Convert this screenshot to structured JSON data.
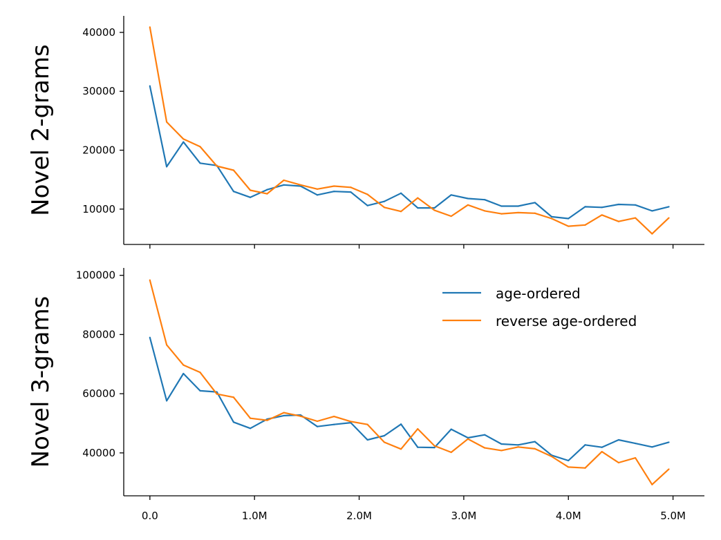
{
  "chart_data": {
    "type": "line",
    "x": [
      0,
      160000,
      320000,
      480000,
      640000,
      800000,
      960000,
      1120000,
      1280000,
      1440000,
      1600000,
      1760000,
      1920000,
      2080000,
      2240000,
      2400000,
      2560000,
      2720000,
      2880000,
      3040000,
      3200000,
      3360000,
      3520000,
      3680000,
      3840000,
      4000000,
      4160000,
      4320000,
      4480000,
      4640000,
      4800000,
      4960000
    ],
    "xlim": [
      -250000,
      5300000
    ],
    "xticks": [
      0,
      1000000,
      2000000,
      3000000,
      4000000,
      5000000
    ],
    "xtick_labels": [
      "0.0",
      "1.0M",
      "2.0M",
      "3.0M",
      "4.0M",
      "5.0M"
    ],
    "legend": {
      "placement": "top-right",
      "entries": [
        "age-ordered",
        "reverse age-ordered"
      ]
    },
    "colors": {
      "age-ordered": "#1f77b4",
      "reverse age-ordered": "#ff7f0e"
    },
    "grid": false,
    "panels": [
      {
        "ylabel": "Novel 2-grams",
        "ylim": [
          4000,
          42800
        ],
        "yticks": [
          10000,
          20000,
          30000,
          40000
        ],
        "ytick_labels": [
          "10000",
          "20000",
          "30000",
          "40000"
        ],
        "series": [
          {
            "name": "age-ordered",
            "values": [
              30900,
              17200,
              21400,
              17800,
              17400,
              13000,
              12000,
              13300,
              14100,
              13900,
              12400,
              13000,
              12900,
              10600,
              11300,
              12700,
              10200,
              10200,
              12400,
              11800,
              11600,
              10500,
              10500,
              11100,
              8700,
              8400,
              10400,
              10300,
              10800,
              10700,
              9700,
              10400
            ]
          },
          {
            "name": "reverse age-ordered",
            "values": [
              40900,
              24800,
              21900,
              20600,
              17300,
              16600,
              13200,
              12600,
              14900,
              14100,
              13400,
              13900,
              13700,
              12500,
              10300,
              9600,
              11900,
              9800,
              8800,
              10700,
              9700,
              9200,
              9400,
              9300,
              8400,
              7100,
              7300,
              9000,
              7900,
              8500,
              5800,
              8500
            ]
          }
        ]
      },
      {
        "ylabel": "Novel 3-grams",
        "ylim": [
          25500,
          102500
        ],
        "yticks": [
          40000,
          60000,
          80000,
          100000
        ],
        "ytick_labels": [
          "40000",
          "60000",
          "80000",
          "100000"
        ],
        "series": [
          {
            "name": "age-ordered",
            "values": [
              79000,
              57600,
              66800,
              61000,
              60600,
              50400,
              48300,
              51400,
              52600,
              52800,
              48900,
              49600,
              50200,
              44400,
              45800,
              49700,
              41900,
              41800,
              48000,
              45100,
              46100,
              43000,
              42700,
              43800,
              39200,
              37400,
              42700,
              41900,
              44400,
              43200,
              42000,
              43600
            ]
          },
          {
            "name": "reverse age-ordered",
            "values": [
              98400,
              76500,
              69700,
              67200,
              59900,
              58800,
              51700,
              51000,
              53600,
              52400,
              50700,
              52300,
              50600,
              49600,
              43600,
              41300,
              48100,
              42400,
              40200,
              44700,
              41700,
              40800,
              42000,
              41400,
              38800,
              35200,
              34900,
              40400,
              36700,
              38300,
              29300,
              34500
            ]
          }
        ]
      }
    ]
  }
}
